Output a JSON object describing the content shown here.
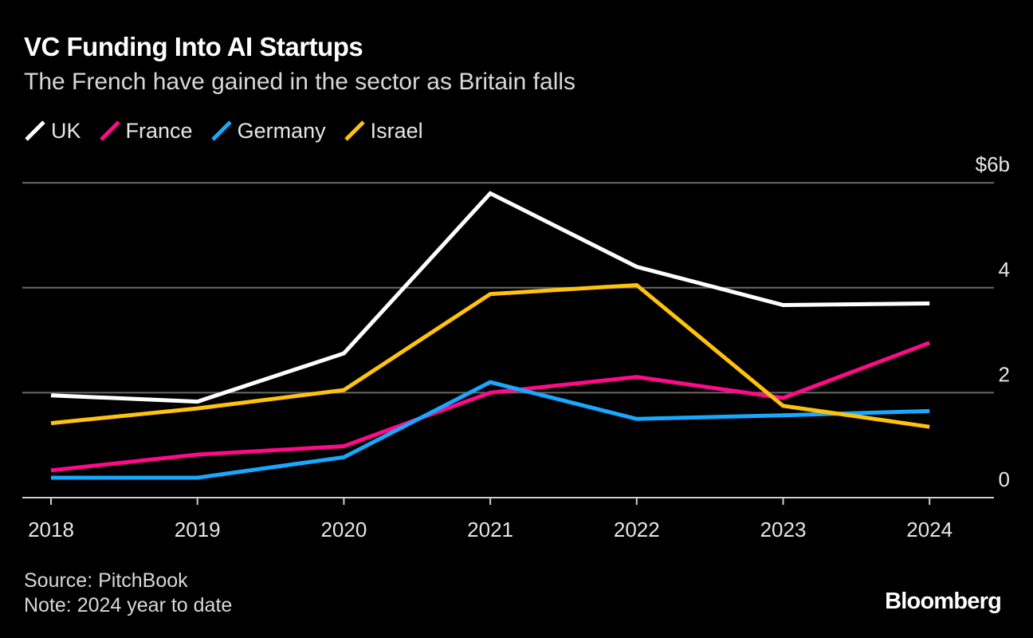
{
  "chart_data": {
    "type": "line",
    "title": "VC Funding Into AI Startups",
    "subtitle": "The French have gained in the sector as Britain falls",
    "x": [
      "2018",
      "2019",
      "2020",
      "2021",
      "2022",
      "2023",
      "2024"
    ],
    "y_ticks": [
      "0",
      "2",
      "4",
      "$6b"
    ],
    "y_tick_values": [
      0,
      2,
      4,
      6
    ],
    "ylim": [
      0,
      6
    ],
    "grid": true,
    "legend_position": "top-left",
    "y_axis_side": "right",
    "series": [
      {
        "name": "UK",
        "color": "#ffffff",
        "values": [
          1.95,
          1.83,
          2.75,
          5.8,
          4.4,
          3.67,
          3.7
        ]
      },
      {
        "name": "France",
        "color": "#ff0a8a",
        "values": [
          0.52,
          0.82,
          0.98,
          2.0,
          2.3,
          1.9,
          2.95
        ]
      },
      {
        "name": "Germany",
        "color": "#19a8ff",
        "values": [
          0.38,
          0.38,
          0.77,
          2.2,
          1.5,
          1.57,
          1.65
        ]
      },
      {
        "name": "Israel",
        "color": "#ffc20e",
        "values": [
          1.42,
          1.7,
          2.05,
          3.88,
          4.05,
          1.75,
          1.35
        ]
      }
    ]
  },
  "footer": {
    "source": "Source: PitchBook",
    "note": "Note: 2024 year to date",
    "logo": "Bloomberg"
  }
}
